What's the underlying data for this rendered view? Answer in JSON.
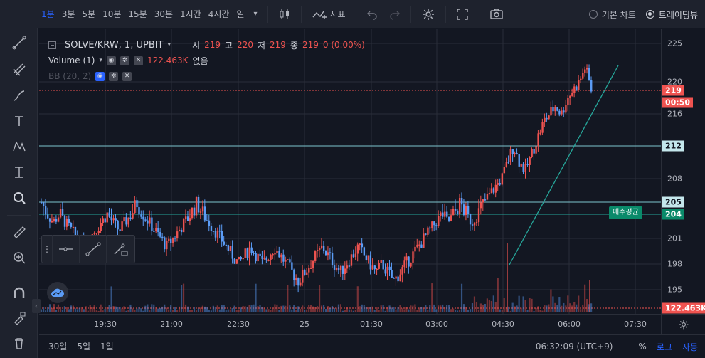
{
  "toolbar": {
    "intervals": [
      "1분",
      "3분",
      "5분",
      "10분",
      "15분",
      "30분",
      "1시간",
      "4시간",
      "일"
    ],
    "active_interval": "1분",
    "indicators_label": "지표",
    "chart_types": {
      "basic": "기본 차트",
      "tradingview": "트레이딩뷰"
    },
    "selected_chart_type": "트레이딩뷰"
  },
  "legend": {
    "symbol": "SOLVE/KRW, 1, UPBIT",
    "open_label": "시",
    "open": "219",
    "high_label": "고",
    "high": "220",
    "low_label": "저",
    "low": "219",
    "close_label": "종",
    "close": "219",
    "change": "0 (0.00%)",
    "volume_title": "Volume (1)",
    "volume_value": "122.463K",
    "volume_extra": "없음",
    "bb_title": "BB (20, 2)"
  },
  "price_axis": {
    "ticks": [
      "225",
      "220",
      "216",
      "212",
      "208",
      "205",
      "201",
      "198",
      "195"
    ],
    "current_price": "219",
    "countdown": "00:50",
    "line_212": "212",
    "line_205": "205",
    "line_204": "204",
    "volume_label": "122.463K"
  },
  "avg_buy_label": "매수평균",
  "time_axis": {
    "ticks": [
      "19:30",
      "21:00",
      "22:30",
      "25",
      "01:30",
      "03:00",
      "04:30",
      "06:00",
      "07:30"
    ]
  },
  "bottom": {
    "ranges": [
      "30일",
      "5일",
      "1일"
    ],
    "clock": "06:32:09 (UTC+9)",
    "percent": "%",
    "log": "로그",
    "auto": "자동"
  },
  "colors": {
    "up": "#ef5350",
    "down": "#5b9cf6",
    "line212": "#7ec4cf",
    "line205": "#7ec4cf",
    "line204": "#26a69a",
    "accent": "#2962ff"
  },
  "chart_data": {
    "type": "candlestick",
    "ylim": [
      193,
      226
    ],
    "x_ticks": [
      "19:30",
      "21:00",
      "22:30",
      "25",
      "01:30",
      "03:00",
      "04:30",
      "06:00",
      "07:30"
    ],
    "price_path": [
      205,
      204,
      203,
      204,
      203,
      202,
      201,
      200,
      201,
      202,
      203,
      204,
      203,
      202,
      203,
      204,
      205,
      204,
      203,
      202,
      201,
      200,
      201,
      202,
      203,
      204,
      205,
      204,
      203,
      202,
      201,
      200,
      199,
      198,
      199,
      200,
      199,
      198,
      199,
      200,
      199,
      198,
      197,
      196,
      197,
      198,
      199,
      200,
      199,
      198,
      197,
      198,
      199,
      200,
      199,
      198,
      197,
      198,
      197,
      196,
      197,
      198,
      199,
      200,
      201,
      202,
      203,
      204,
      203,
      204,
      205,
      204,
      203,
      204,
      205,
      206,
      207,
      208,
      210,
      212,
      210,
      209,
      211,
      213,
      215,
      216,
      217,
      216,
      218,
      219,
      220,
      222,
      219
    ],
    "horizontal_lines": [
      212,
      205,
      204,
      219
    ],
    "trendline": {
      "from": [
        "04:35",
        198
      ],
      "to": [
        "07:10",
        222
      ]
    }
  }
}
